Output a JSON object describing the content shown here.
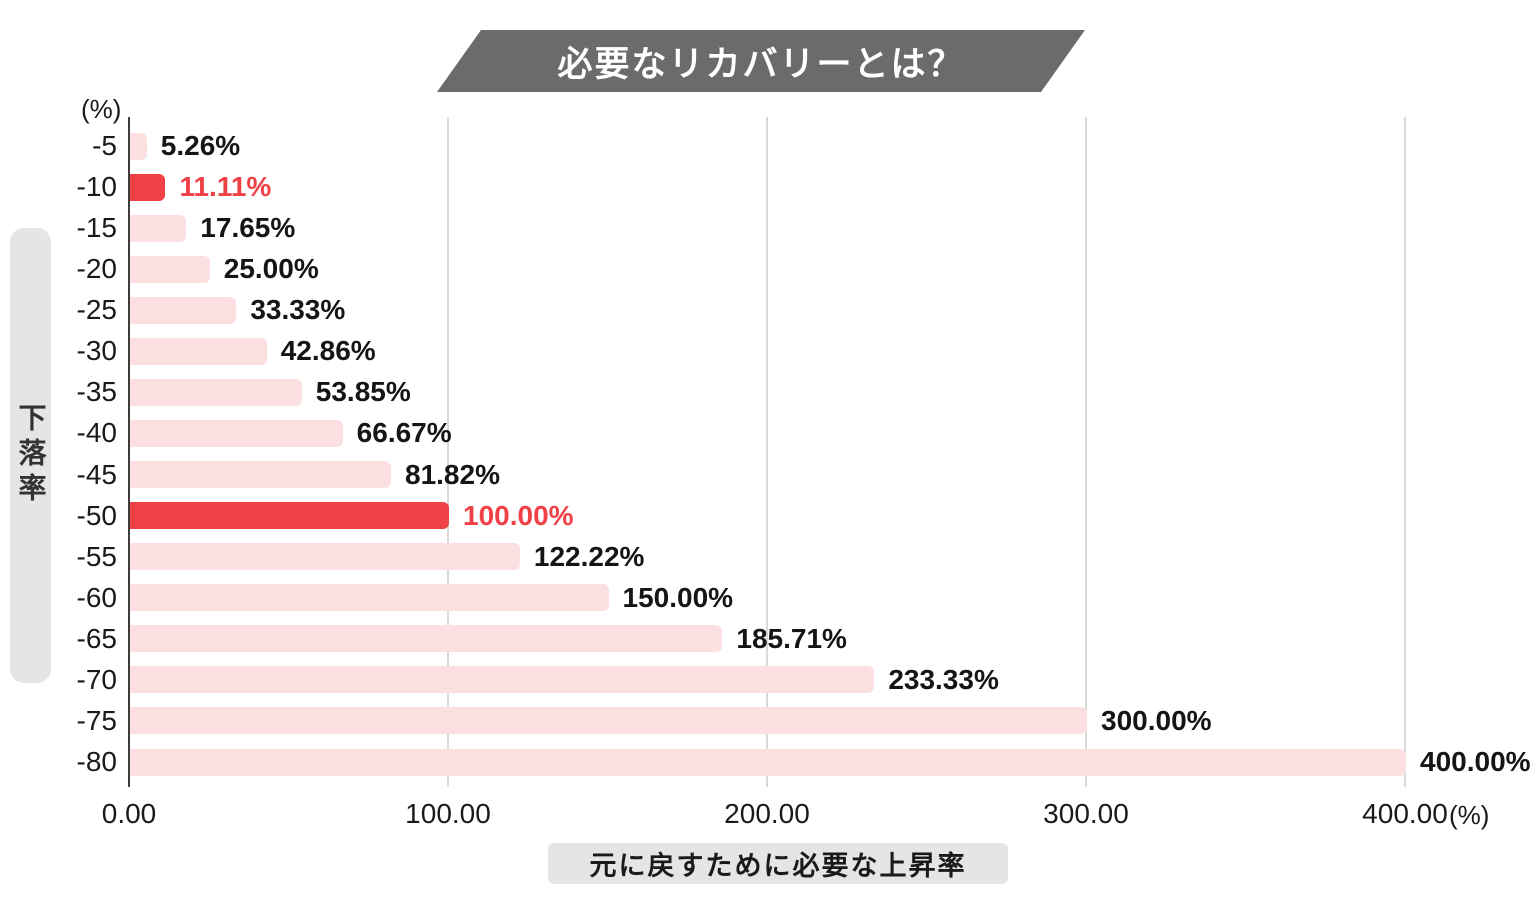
{
  "title": "必要なリカバリーとは？",
  "y_axis": {
    "title": "下落率",
    "unit": "(%)"
  },
  "x_axis": {
    "title": "元に戻すために必要な上昇率",
    "unit": "(%)"
  },
  "colors": {
    "banner_bg": "#6B6B6B",
    "banner_text": "#ffffff",
    "badge_bg": "#E5E5E5",
    "bar": "#FBDFE1",
    "bar_highlight": "#EF4146",
    "value_text": "#151515",
    "value_text_highlight": "#EF4146",
    "tick_text": "#1a1a1a",
    "axis_line": "#3d3d3d",
    "gridline": "#D9D9D9"
  },
  "chart_data": {
    "type": "bar",
    "orientation": "horizontal",
    "title": "必要なリカバリーとは？",
    "xlabel": "元に戻すために必要な上昇率",
    "ylabel": "下落率",
    "xlim": [
      0,
      400
    ],
    "grid": true,
    "categories": [
      "-5",
      "-10",
      "-15",
      "-20",
      "-25",
      "-30",
      "-35",
      "-40",
      "-45",
      "-50",
      "-55",
      "-60",
      "-65",
      "-70",
      "-75",
      "-80"
    ],
    "values": [
      5.26,
      11.11,
      17.65,
      25.0,
      33.33,
      42.86,
      53.85,
      66.67,
      81.82,
      100.0,
      122.22,
      150.0,
      185.71,
      233.33,
      300.0,
      400.0
    ],
    "value_labels": [
      "5.26%",
      "11.11%",
      "17.65%",
      "25.00%",
      "33.33%",
      "42.86%",
      "53.85%",
      "66.67%",
      "81.82%",
      "100.00%",
      "122.22%",
      "150.00%",
      "185.71%",
      "233.33%",
      "300.00%",
      "400.00%"
    ],
    "highlight_indices": [
      1,
      9
    ],
    "x_tick_values": [
      0,
      100,
      200,
      300,
      400
    ],
    "x_tick_labels": [
      "0.00",
      "100.00",
      "200.00",
      "300.00",
      "400.00"
    ]
  }
}
